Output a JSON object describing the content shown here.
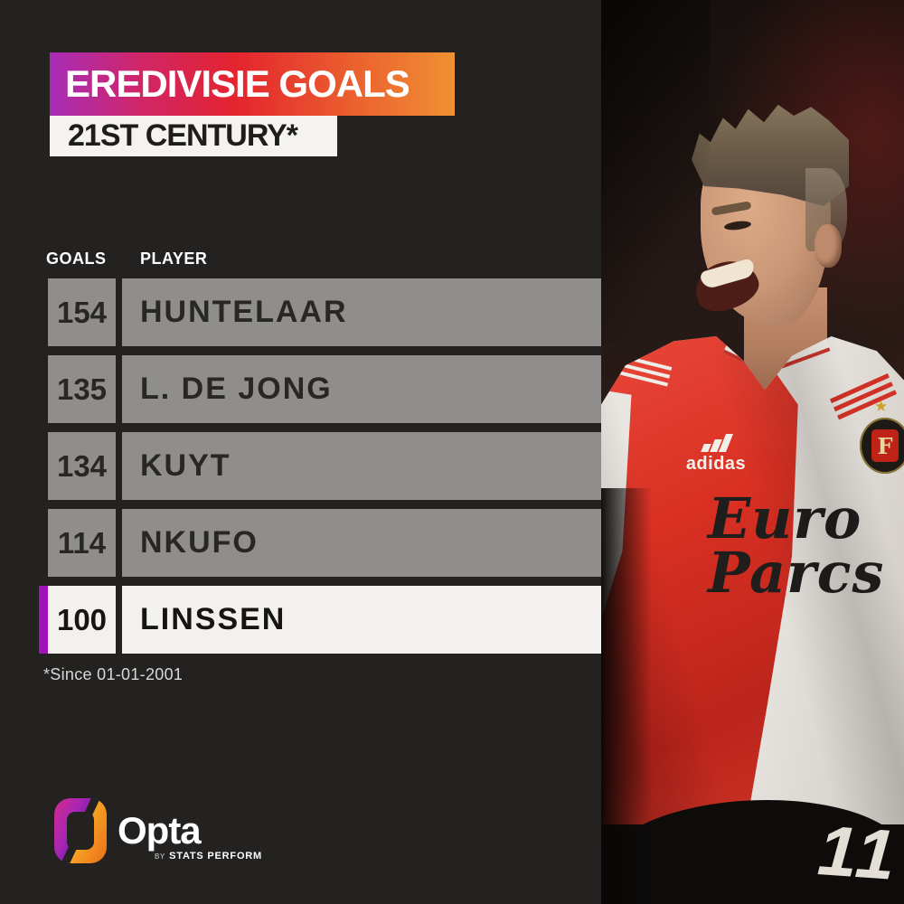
{
  "header": {
    "title": "EREDIVISIE GOALS",
    "subtitle": "21ST CENTURY*"
  },
  "table": {
    "columns": [
      "GOALS",
      "PLAYER"
    ],
    "rows": [
      {
        "goals": "154",
        "player": "HUNTELAAR",
        "highlighted": false
      },
      {
        "goals": "135",
        "player": "L. DE JONG",
        "highlighted": false
      },
      {
        "goals": "134",
        "player": "KUYT",
        "highlighted": false
      },
      {
        "goals": "114",
        "player": "NKUFO",
        "highlighted": false
      },
      {
        "goals": "100",
        "player": "LINSSEN",
        "highlighted": true
      }
    ]
  },
  "footnote": "*Since 01-01-2001",
  "branding": {
    "name": "Opta",
    "byline_prefix": "BY",
    "byline_text": "STATS PERFORM"
  },
  "photo": {
    "jersey_brand": "adidas",
    "sponsor_line1": "Euro",
    "sponsor_line2": "Parcs",
    "crest_letter": "F",
    "crest_star": "★",
    "shorts_number": "11"
  },
  "colors": {
    "background": "#242220",
    "banner_gradient": [
      "#a82cb8",
      "#e4242e",
      "#f09133"
    ],
    "row_gray": "#8f8e8c",
    "row_highlight": "#f2f1ef",
    "accent_purple": "#a312b8",
    "jersey_red": "#d93023"
  },
  "chart_data": {
    "type": "table",
    "title": "EREDIVISIE GOALS",
    "subtitle": "21ST CENTURY*",
    "columns": [
      "GOALS",
      "PLAYER"
    ],
    "rows": [
      [
        154,
        "HUNTELAAR"
      ],
      [
        135,
        "L. DE JONG"
      ],
      [
        134,
        "KUYT"
      ],
      [
        114,
        "NKUFO"
      ],
      [
        100,
        "LINSSEN"
      ]
    ],
    "highlighted_row": "LINSSEN",
    "footnote": "*Since 01-01-2001"
  }
}
